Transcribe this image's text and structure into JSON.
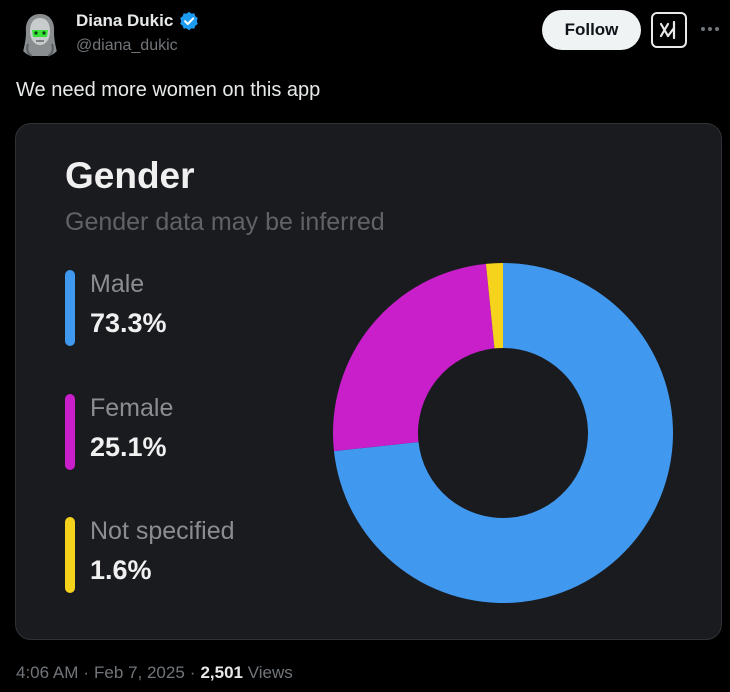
{
  "author": {
    "display_name": "Diana Dukic",
    "handle": "@diana_dukic",
    "verified": true,
    "avatar_icon": "robot-face-avatar"
  },
  "actions": {
    "follow_label": "Follow",
    "grok_icon": "grok-icon",
    "more_icon": "more-options-icon"
  },
  "tweet": {
    "text": "We need more women on this app"
  },
  "chart_data": {
    "type": "pie",
    "title": "Gender",
    "subtitle": "Gender data may be inferred",
    "donut": true,
    "series": [
      {
        "name": "Male",
        "value": 73.3,
        "label": "73.3%",
        "color": "#4099ef"
      },
      {
        "name": "Female",
        "value": 25.1,
        "label": "25.1%",
        "color": "#c81fcb"
      },
      {
        "name": "Not specified",
        "value": 1.6,
        "label": "1.6%",
        "color": "#f5d21c"
      }
    ]
  },
  "meta": {
    "time": "4:06 AM",
    "sep1": "·",
    "date": "Feb 7, 2025",
    "sep2": "·",
    "views_count": "2,501",
    "views_label": "Views"
  },
  "colors": {
    "background": "#000000",
    "card_background": "#1a1b1f",
    "accent_verified": "#1d9bf0"
  }
}
